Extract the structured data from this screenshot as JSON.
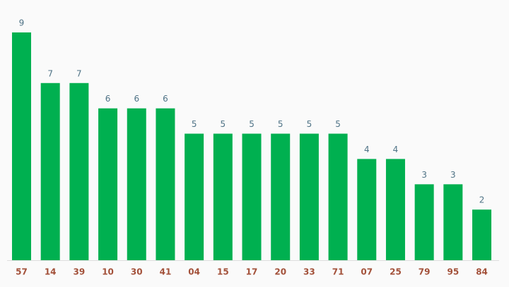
{
  "chart_data": {
    "type": "bar",
    "categories": [
      "57",
      "14",
      "39",
      "10",
      "30",
      "41",
      "04",
      "15",
      "17",
      "20",
      "33",
      "71",
      "07",
      "25",
      "79",
      "95",
      "84"
    ],
    "values": [
      9,
      7,
      7,
      6,
      6,
      6,
      5,
      5,
      5,
      5,
      5,
      5,
      4,
      4,
      3,
      3,
      2
    ],
    "color": "#00b050"
  }
}
